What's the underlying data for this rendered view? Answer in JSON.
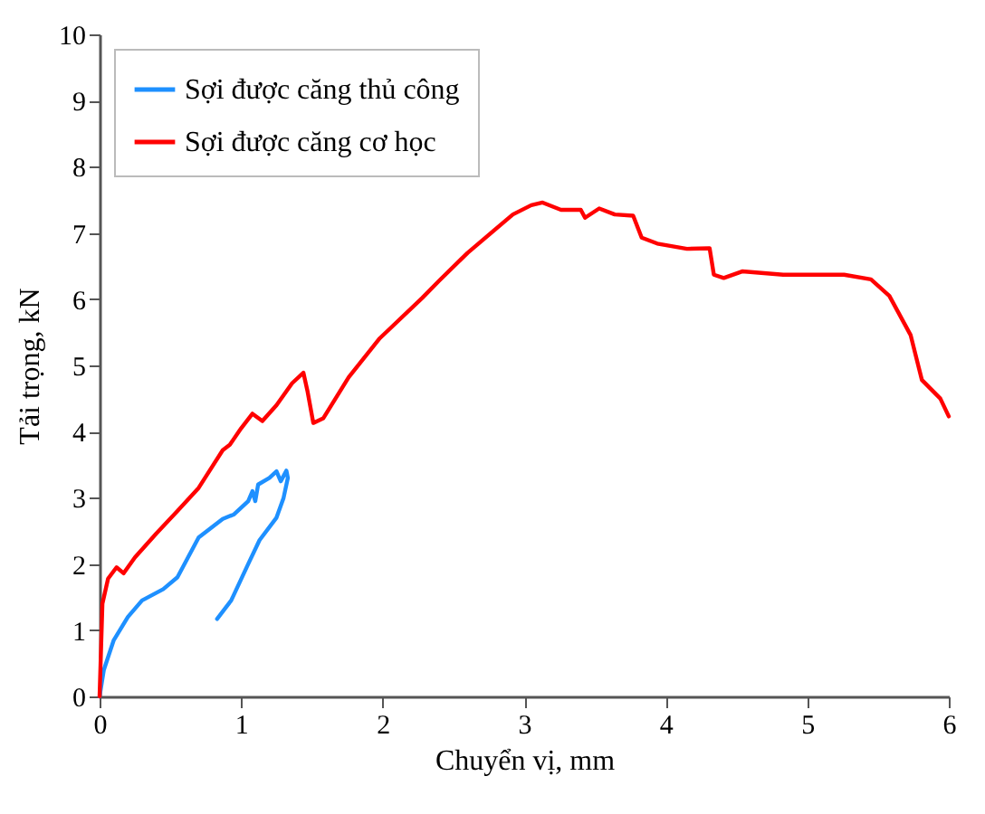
{
  "chart_data": {
    "type": "line",
    "xlabel": "Chuyển vị, mm",
    "ylabel": "Tải trọng, kN",
    "xlim": [
      0,
      6
    ],
    "ylim": [
      0,
      10
    ],
    "xticks": [
      0,
      1,
      2,
      3,
      4,
      5,
      6
    ],
    "yticks": [
      0,
      1,
      2,
      3,
      4,
      5,
      6,
      7,
      8,
      9,
      10
    ],
    "grid": false,
    "legend": "top left",
    "marker": "none",
    "line_style": "solid",
    "series": [
      {
        "name": "Sợi được căng thủ công",
        "color": "#1e90ff",
        "x": [
          0,
          0.03,
          0.1,
          0.2,
          0.3,
          0.45,
          0.55,
          0.7,
          0.87,
          0.95,
          1.0,
          1.05,
          1.08,
          1.1,
          1.12,
          1.2,
          1.25,
          1.28,
          1.32,
          1.33,
          1.3,
          1.25,
          1.13,
          1.05,
          0.93,
          0.83
        ],
        "values": [
          0,
          0.4,
          0.85,
          1.2,
          1.45,
          1.62,
          1.8,
          2.4,
          2.68,
          2.75,
          2.85,
          2.95,
          3.1,
          2.95,
          3.2,
          3.3,
          3.4,
          3.25,
          3.41,
          3.3,
          3.0,
          2.7,
          2.36,
          2.0,
          1.45,
          1.17
        ]
      },
      {
        "name": "Sợi được căng cơ học",
        "color": "#ff0000",
        "x": [
          0,
          0.02,
          0.06,
          0.12,
          0.17,
          0.25,
          0.4,
          0.55,
          0.7,
          0.87,
          0.92,
          1.0,
          1.08,
          1.15,
          1.25,
          1.36,
          1.44,
          1.47,
          1.51,
          1.58,
          1.76,
          1.98,
          2.28,
          2.4,
          2.6,
          2.92,
          3.05,
          3.13,
          3.26,
          3.4,
          3.43,
          3.53,
          3.64,
          3.77,
          3.83,
          3.94,
          4.15,
          4.31,
          4.34,
          4.41,
          4.54,
          4.83,
          5.26,
          5.45,
          5.58,
          5.73,
          5.81,
          5.94,
          6.0
        ],
        "values": [
          0,
          1.4,
          1.78,
          1.95,
          1.86,
          2.1,
          2.46,
          2.8,
          3.15,
          3.72,
          3.8,
          4.05,
          4.27,
          4.16,
          4.4,
          4.73,
          4.89,
          4.6,
          4.13,
          4.2,
          4.82,
          5.41,
          6.02,
          6.28,
          6.7,
          7.28,
          7.42,
          7.46,
          7.35,
          7.35,
          7.23,
          7.37,
          7.28,
          7.26,
          6.93,
          6.84,
          6.76,
          6.77,
          6.37,
          6.32,
          6.42,
          6.37,
          6.37,
          6.3,
          6.05,
          5.46,
          4.78,
          4.5,
          4.23
        ]
      }
    ]
  }
}
